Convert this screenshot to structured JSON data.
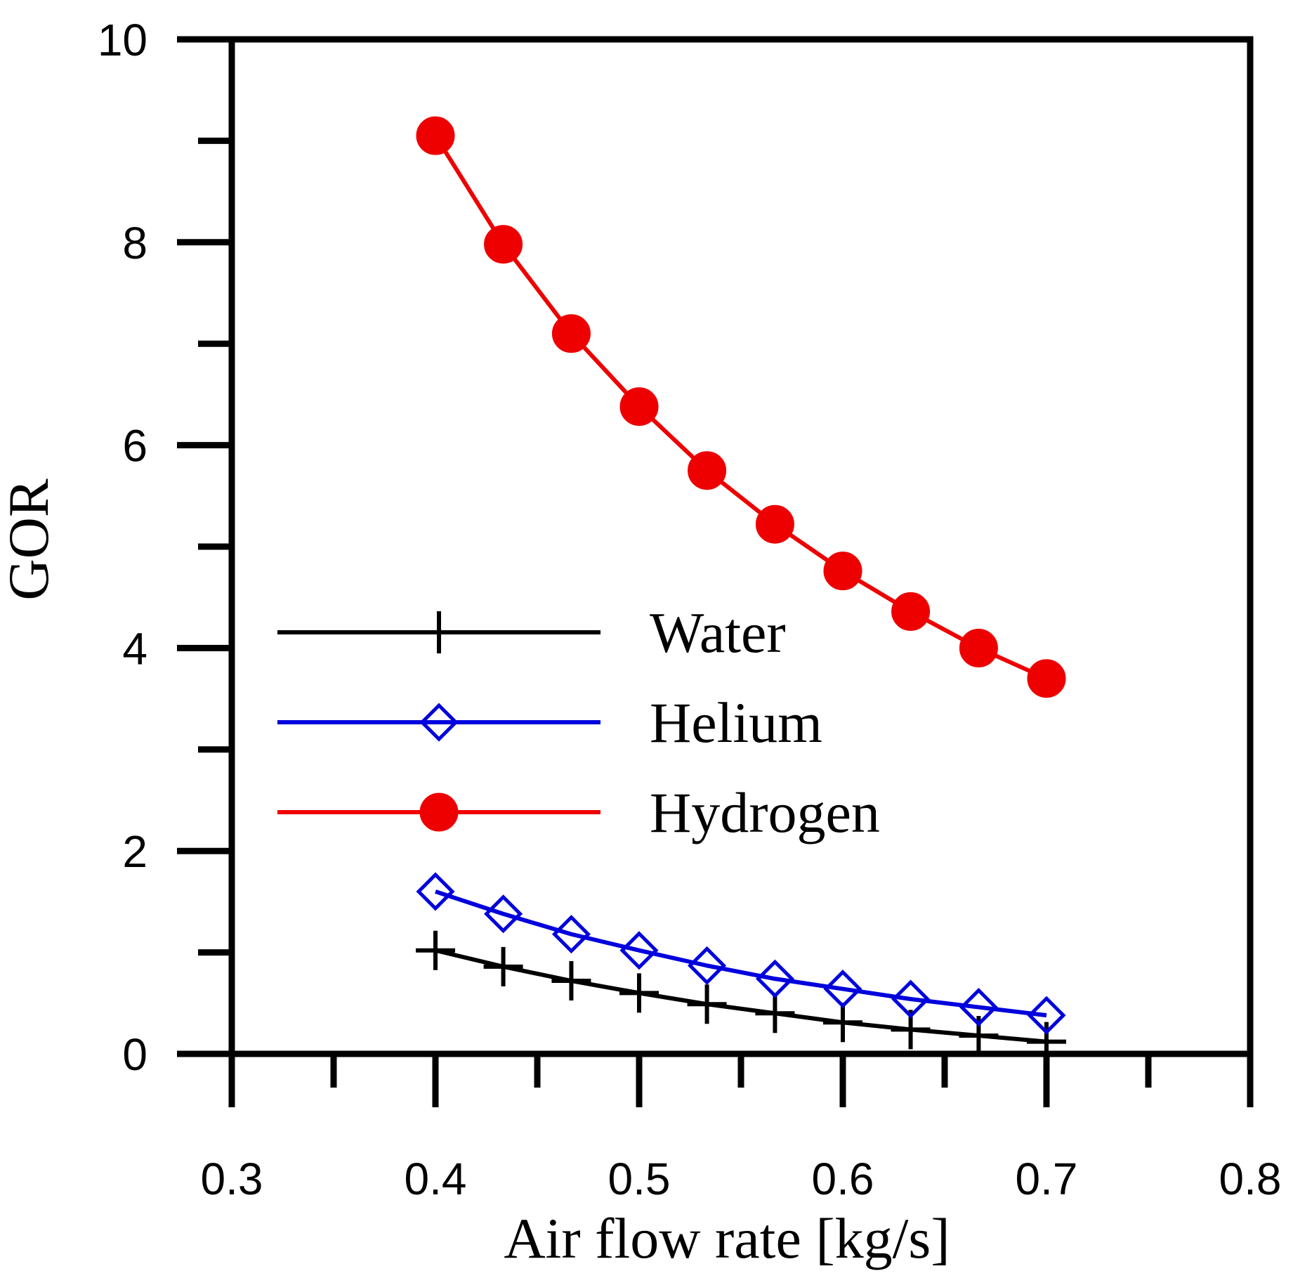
{
  "chart_data": {
    "type": "line",
    "title": "",
    "xlabel": "Air flow rate [kg/s]",
    "ylabel": "GOR",
    "xlim": [
      0.3,
      0.8
    ],
    "ylim": [
      0,
      10
    ],
    "x_ticks": [
      0.3,
      0.4,
      0.5,
      0.6,
      0.7,
      0.8
    ],
    "x_tick_labels": [
      "0.3",
      "0.4",
      "0.5",
      "0.6",
      "0.7",
      "0.8"
    ],
    "y_ticks": [
      0,
      2,
      4,
      6,
      8,
      10
    ],
    "y_tick_labels": [
      "0",
      "2",
      "4",
      "6",
      "8",
      "10"
    ],
    "x_minor_ticks": [
      0.35,
      0.45,
      0.55,
      0.65,
      0.75
    ],
    "y_minor_ticks": [
      1,
      3,
      5,
      7,
      9
    ],
    "grid": false,
    "legend_position": "middle-left",
    "x": [
      0.4,
      0.4333,
      0.4667,
      0.5,
      0.5333,
      0.5667,
      0.6,
      0.6333,
      0.6667,
      0.7
    ],
    "series": [
      {
        "name": "Water",
        "color": "#000000",
        "marker": "plus",
        "values": [
          1.02,
          0.86,
          0.72,
          0.6,
          0.49,
          0.4,
          0.31,
          0.24,
          0.18,
          0.12
        ]
      },
      {
        "name": "Helium",
        "color": "#0000dd",
        "marker": "diamond-open",
        "values": [
          1.6,
          1.38,
          1.18,
          1.02,
          0.87,
          0.74,
          0.64,
          0.54,
          0.46,
          0.38
        ]
      },
      {
        "name": "Hydrogen",
        "color": "#ee0000",
        "marker": "circle-filled",
        "values": [
          9.05,
          7.98,
          7.1,
          6.38,
          5.75,
          5.22,
          4.76,
          4.36,
          4.0,
          3.7
        ]
      }
    ]
  }
}
